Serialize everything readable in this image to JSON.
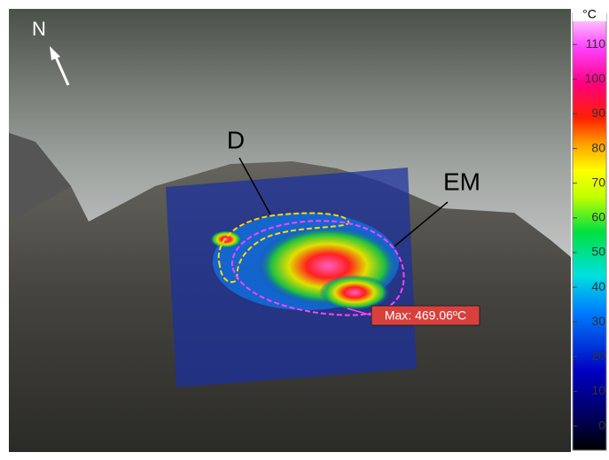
{
  "labels": {
    "north": "N",
    "d": "D",
    "em": "EM",
    "max": "Max: 469.06ºC"
  },
  "colorbar": {
    "unit": "°C",
    "lim": [
      -7,
      119
    ],
    "ticks": [
      0,
      10,
      20,
      30,
      40,
      50,
      60,
      70,
      80,
      90,
      100,
      110
    ]
  }
}
